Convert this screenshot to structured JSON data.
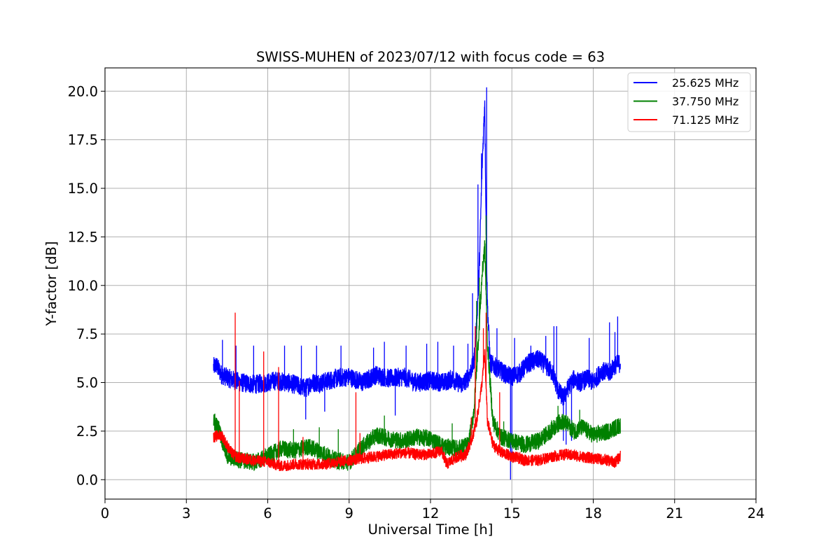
{
  "chart_data": {
    "type": "line",
    "title": "SWISS-MUHEN of 2023/07/12 with focus code = 63",
    "xlabel": "Universal Time [h]",
    "ylabel": "Y-factor [dB]",
    "xlim": [
      0,
      24
    ],
    "ylim": [
      -1.0,
      21.2
    ],
    "xticks": [
      0,
      3,
      6,
      9,
      12,
      15,
      18,
      21,
      24
    ],
    "yticks": [
      0.0,
      2.5,
      5.0,
      7.5,
      10.0,
      12.5,
      15.0,
      17.5,
      20.0
    ],
    "xtick_labels": [
      "0",
      "3",
      "6",
      "9",
      "12",
      "15",
      "18",
      "21",
      "24"
    ],
    "ytick_labels": [
      "0.0",
      "2.5",
      "5.0",
      "7.5",
      "10.0",
      "12.5",
      "15.0",
      "17.5",
      "20.0"
    ],
    "grid": true,
    "legend_position": "top-right",
    "series": [
      {
        "name": "25.625 MHz",
        "color": "#0000ff",
        "noise": 0.5,
        "x": [
          4.0,
          4.1,
          4.3,
          4.6,
          5.0,
          5.5,
          6.0,
          6.3,
          6.7,
          7.0,
          7.4,
          7.6,
          8.0,
          8.5,
          9.0,
          9.5,
          10.0,
          10.5,
          11.0,
          11.5,
          12.0,
          12.5,
          12.8,
          13.0,
          13.2,
          13.4,
          13.6,
          13.7,
          13.8,
          13.9,
          14.0,
          14.05,
          14.1,
          14.2,
          14.4,
          14.6,
          14.8,
          15.0,
          15.3,
          15.6,
          16.0,
          16.3,
          16.5,
          16.7,
          16.9,
          17.1,
          17.3,
          17.5,
          17.8,
          18.0,
          18.3,
          18.6,
          18.8,
          19.0
        ],
        "y": [
          5.8,
          5.9,
          5.4,
          5.2,
          5.0,
          4.9,
          5.0,
          5.1,
          5.0,
          4.9,
          4.7,
          5.0,
          5.0,
          5.2,
          5.3,
          5.0,
          5.4,
          5.2,
          5.3,
          5.0,
          5.1,
          5.0,
          5.2,
          5.0,
          4.9,
          5.3,
          6.0,
          8.0,
          11.0,
          16.0,
          19.5,
          13.0,
          9.0,
          6.0,
          5.8,
          5.6,
          5.4,
          5.3,
          5.5,
          6.0,
          6.2,
          5.8,
          5.5,
          4.6,
          4.2,
          4.8,
          5.2,
          5.0,
          5.2,
          5.0,
          5.6,
          5.5,
          5.9,
          6.0
        ]
      },
      {
        "name": "37.750 MHz",
        "color": "#008000",
        "noise": 0.45,
        "x": [
          4.0,
          4.2,
          4.5,
          5.0,
          5.5,
          6.0,
          6.5,
          7.0,
          7.5,
          8.0,
          8.5,
          9.0,
          9.5,
          10.0,
          10.5,
          11.0,
          11.5,
          12.0,
          12.5,
          13.0,
          13.4,
          13.6,
          13.8,
          13.9,
          14.0,
          14.1,
          14.3,
          14.6,
          15.0,
          15.5,
          16.0,
          16.5,
          16.8,
          17.0,
          17.3,
          17.6,
          18.0,
          18.4,
          18.7,
          19.0
        ],
        "y": [
          3.0,
          2.6,
          1.2,
          1.0,
          0.9,
          1.2,
          1.6,
          1.5,
          1.7,
          1.4,
          1.0,
          0.9,
          1.7,
          2.3,
          2.1,
          2.0,
          2.2,
          2.1,
          1.7,
          1.6,
          1.8,
          3.5,
          8.0,
          10.5,
          12.0,
          7.0,
          3.0,
          2.2,
          2.0,
          1.8,
          2.0,
          2.6,
          3.0,
          2.9,
          2.5,
          2.7,
          2.3,
          2.4,
          2.6,
          2.8
        ]
      },
      {
        "name": "71.125 MHz",
        "color": "#ff0000",
        "noise": 0.3,
        "x": [
          4.0,
          4.3,
          4.6,
          4.8,
          5.0,
          5.5,
          6.0,
          6.5,
          7.0,
          7.5,
          8.0,
          8.5,
          9.0,
          9.5,
          10.0,
          10.5,
          11.0,
          11.5,
          12.0,
          12.4,
          12.6,
          12.8,
          13.0,
          13.3,
          13.5,
          13.7,
          13.9,
          14.0,
          14.1,
          14.3,
          14.6,
          15.0,
          15.5,
          16.0,
          16.5,
          17.0,
          17.5,
          18.0,
          18.5,
          18.8,
          19.0
        ],
        "y": [
          2.2,
          2.3,
          1.5,
          1.2,
          1.1,
          1.0,
          0.9,
          0.7,
          0.8,
          0.8,
          0.8,
          0.9,
          1.0,
          1.1,
          1.2,
          1.3,
          1.4,
          1.3,
          1.3,
          1.5,
          0.8,
          1.0,
          1.2,
          1.3,
          2.0,
          3.0,
          5.0,
          6.5,
          3.0,
          1.8,
          1.4,
          1.2,
          1.0,
          1.0,
          1.2,
          1.3,
          1.2,
          1.1,
          1.0,
          0.9,
          1.2
        ]
      }
    ],
    "spikes": [
      {
        "series": 0,
        "x": [
          4.33,
          4.83,
          5.48,
          6.62,
          7.24,
          7.8,
          8.7,
          9.9,
          10.3,
          11.1,
          11.86,
          12.27,
          12.85,
          13.38,
          13.55,
          13.75,
          13.88,
          13.97,
          14.07,
          14.45,
          15.1,
          15.7,
          16.25,
          16.55,
          16.65,
          17.85,
          18.6,
          18.8,
          18.9
        ],
        "y": [
          7.2,
          6.9,
          6.9,
          6.9,
          6.9,
          6.9,
          6.9,
          6.8,
          7.1,
          6.9,
          7.0,
          7.1,
          6.9,
          7.0,
          9.6,
          15.2,
          16.8,
          18.4,
          20.2,
          7.8,
          7.3,
          6.9,
          7.4,
          7.9,
          7.9,
          7.3,
          8.1,
          7.6,
          8.4
        ]
      },
      {
        "series": 0,
        "x": [
          7.4,
          8.1,
          10.7,
          14.95,
          15.0,
          16.9,
          17.0,
          17.2
        ],
        "y": [
          3.1,
          3.5,
          3.3,
          0.0,
          1.1,
          2.0,
          1.8,
          2.0
        ]
      },
      {
        "series": 1,
        "x": [
          4.05,
          6.95,
          7.9,
          8.6,
          10.3,
          12.8,
          13.5,
          13.7,
          13.8,
          13.95,
          14.05,
          14.7,
          16.7,
          17.5
        ],
        "y": [
          3.4,
          2.6,
          2.7,
          2.6,
          3.3,
          2.9,
          2.9,
          9.2,
          10.4,
          11.6,
          13.6,
          3.0,
          3.8,
          3.6
        ]
      },
      {
        "series": 2,
        "x": [
          4.8,
          4.95,
          5.85,
          6.4,
          7.3,
          9.25,
          9.4,
          13.5,
          13.65,
          13.95,
          14.05,
          14.55
        ],
        "y": [
          8.6,
          5.1,
          6.6,
          5.8,
          2.2,
          4.5,
          2.4,
          3.2,
          7.9,
          7.8,
          8.6,
          4.5
        ]
      }
    ]
  }
}
